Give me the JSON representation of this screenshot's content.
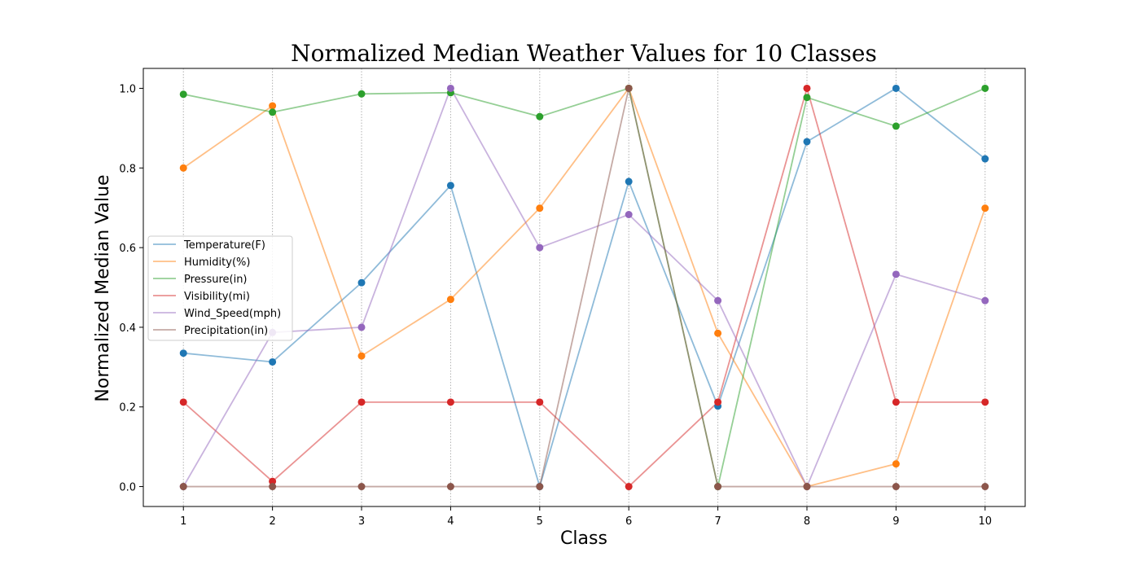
{
  "chart_data": {
    "type": "line",
    "title": "Normalized Median Weather Values for 10 Classes",
    "xlabel": "Class",
    "ylabel": "Normalized Median Value",
    "x": [
      1,
      2,
      3,
      4,
      5,
      6,
      7,
      8,
      9,
      10
    ],
    "x_tick_labels": [
      "1",
      "2",
      "3",
      "4",
      "5",
      "6",
      "7",
      "8",
      "9",
      "10"
    ],
    "y_ticks": [
      0.0,
      0.2,
      0.4,
      0.6,
      0.8,
      1.0
    ],
    "y_tick_labels": [
      "0.0",
      "0.2",
      "0.4",
      "0.6",
      "0.8",
      "1.0"
    ],
    "xlim": [
      0.55,
      10.45
    ],
    "ylim": [
      -0.05,
      1.05
    ],
    "grid": "vertical dotted lines at x ticks",
    "legend_position": "center-left",
    "series": [
      {
        "name": "Temperature(F)",
        "color": "#1f77b4",
        "values": [
          0.335,
          0.313,
          0.512,
          0.756,
          0.0,
          0.766,
          0.202,
          0.866,
          1.0,
          0.823
        ]
      },
      {
        "name": "Humidity(%)",
        "color": "#ff7f0e",
        "values": [
          0.8,
          0.956,
          0.328,
          0.47,
          0.699,
          1.0,
          0.385,
          0.0,
          0.057,
          0.699
        ]
      },
      {
        "name": "Pressure(in)",
        "color": "#2ca02c",
        "values": [
          0.985,
          0.94,
          0.986,
          0.989,
          0.929,
          1.0,
          0.0,
          0.977,
          0.905,
          1.0
        ]
      },
      {
        "name": "Visibility(mi)",
        "color": "#d62728",
        "values": [
          0.212,
          0.013,
          0.212,
          0.212,
          0.212,
          0.0,
          0.212,
          1.0,
          0.212,
          0.212
        ]
      },
      {
        "name": "Wind_Speed(mph)",
        "color": "#9467bd",
        "values": [
          0.0,
          0.387,
          0.4,
          1.0,
          0.6,
          0.683,
          0.467,
          0.0,
          0.533,
          0.467
        ]
      },
      {
        "name": "Precipitation(in)",
        "color": "#8c564b",
        "values": [
          0.0,
          0.0,
          0.0,
          0.0,
          0.0,
          1.0,
          0.0,
          0.0,
          0.0,
          0.0
        ]
      }
    ]
  }
}
